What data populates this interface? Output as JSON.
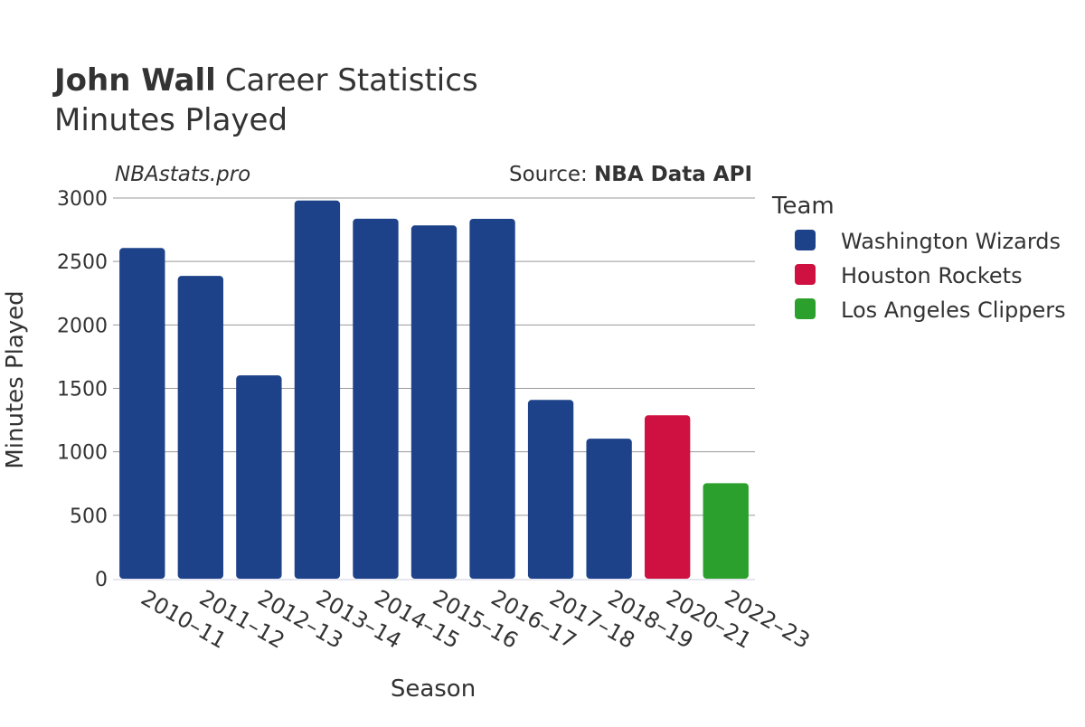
{
  "title": {
    "player": "John Wall",
    "suffix": "Career Statistics",
    "subtitle": "Minutes Played"
  },
  "watermark": "NBAstats.pro",
  "source": {
    "prefix": "Source: ",
    "name": "NBA Data API"
  },
  "chart_data": {
    "type": "bar",
    "xlabel": "Season",
    "ylabel": "Minutes Played",
    "ylim": [
      0,
      3000
    ],
    "yticks": [
      0,
      500,
      1000,
      1500,
      2000,
      2500,
      3000
    ],
    "grid": true,
    "legend_position": "right",
    "categories": [
      "2010–11",
      "2011–12",
      "2012–13",
      "2013–14",
      "2014–15",
      "2015–16",
      "2016–17",
      "2017–18",
      "2018–19",
      "2020–21",
      "2022–23"
    ],
    "values": [
      2606,
      2386,
      1602,
      2980,
      2837,
      2784,
      2836,
      1409,
      1104,
      1288,
      753
    ],
    "teams": [
      "Washington Wizards",
      "Washington Wizards",
      "Washington Wizards",
      "Washington Wizards",
      "Washington Wizards",
      "Washington Wizards",
      "Washington Wizards",
      "Washington Wizards",
      "Washington Wizards",
      "Houston Rockets",
      "Los Angeles Clippers"
    ],
    "legend": {
      "title": "Team",
      "items": [
        {
          "name": "Washington Wizards",
          "color": "#1d428a"
        },
        {
          "name": "Houston Rockets",
          "color": "#ce1141"
        },
        {
          "name": "Los Angeles Clippers",
          "color": "#2ca02c"
        }
      ]
    }
  }
}
